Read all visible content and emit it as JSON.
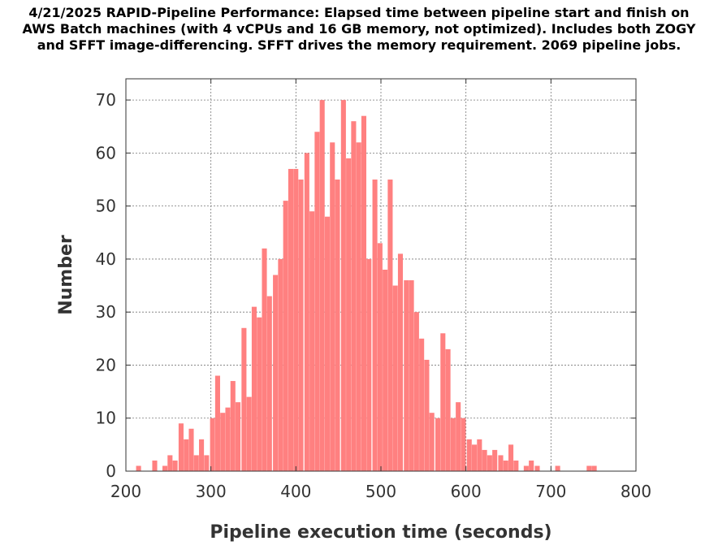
{
  "chart_data": {
    "type": "bar",
    "title_lines": [
      "4/21/2025  RAPID-Pipeline Performance: Elapsed time between pipeline start and finish on",
      "AWS Batch machines (with 4 vCPUs and 16 GB memory, not optimized).  Includes both ZOGY",
      "and SFFT image-differencing.  SFFT drives the memory requirement.  2069 pipeline jobs."
    ],
    "xlabel": "Pipeline execution time (seconds)",
    "ylabel": "Number",
    "xlim": [
      200,
      800
    ],
    "ylim": [
      0,
      74
    ],
    "xticks": [
      200,
      300,
      400,
      500,
      600,
      700,
      800
    ],
    "yticks": [
      0,
      10,
      20,
      30,
      40,
      50,
      60,
      70
    ],
    "grid": true,
    "bar_color": "#ff8080",
    "bin_width": 6.2,
    "bins": [
      {
        "x": 212,
        "y": 1
      },
      {
        "x": 231,
        "y": 2
      },
      {
        "x": 243,
        "y": 1
      },
      {
        "x": 249,
        "y": 3
      },
      {
        "x": 255,
        "y": 2
      },
      {
        "x": 262,
        "y": 9
      },
      {
        "x": 268,
        "y": 6
      },
      {
        "x": 274,
        "y": 8
      },
      {
        "x": 280,
        "y": 3
      },
      {
        "x": 286,
        "y": 6
      },
      {
        "x": 292,
        "y": 3
      },
      {
        "x": 299,
        "y": 10
      },
      {
        "x": 305,
        "y": 18
      },
      {
        "x": 311,
        "y": 11
      },
      {
        "x": 317,
        "y": 12
      },
      {
        "x": 323,
        "y": 17
      },
      {
        "x": 329,
        "y": 13
      },
      {
        "x": 336,
        "y": 27
      },
      {
        "x": 342,
        "y": 14
      },
      {
        "x": 348,
        "y": 31
      },
      {
        "x": 354,
        "y": 29
      },
      {
        "x": 360,
        "y": 42
      },
      {
        "x": 366,
        "y": 33
      },
      {
        "x": 373,
        "y": 37
      },
      {
        "x": 379,
        "y": 40
      },
      {
        "x": 385,
        "y": 51
      },
      {
        "x": 391,
        "y": 57
      },
      {
        "x": 397,
        "y": 57
      },
      {
        "x": 403,
        "y": 55
      },
      {
        "x": 410,
        "y": 60
      },
      {
        "x": 416,
        "y": 49
      },
      {
        "x": 422,
        "y": 64
      },
      {
        "x": 428,
        "y": 70
      },
      {
        "x": 434,
        "y": 48
      },
      {
        "x": 440,
        "y": 62
      },
      {
        "x": 446,
        "y": 55
      },
      {
        "x": 453,
        "y": 70
      },
      {
        "x": 459,
        "y": 59
      },
      {
        "x": 465,
        "y": 66
      },
      {
        "x": 471,
        "y": 62
      },
      {
        "x": 477,
        "y": 67
      },
      {
        "x": 483,
        "y": 40
      },
      {
        "x": 490,
        "y": 55
      },
      {
        "x": 496,
        "y": 43
      },
      {
        "x": 502,
        "y": 38
      },
      {
        "x": 508,
        "y": 55
      },
      {
        "x": 514,
        "y": 35
      },
      {
        "x": 520,
        "y": 41
      },
      {
        "x": 527,
        "y": 36
      },
      {
        "x": 533,
        "y": 36
      },
      {
        "x": 539,
        "y": 30
      },
      {
        "x": 545,
        "y": 25
      },
      {
        "x": 551,
        "y": 21
      },
      {
        "x": 557,
        "y": 11
      },
      {
        "x": 564,
        "y": 10
      },
      {
        "x": 570,
        "y": 26
      },
      {
        "x": 576,
        "y": 23
      },
      {
        "x": 582,
        "y": 10
      },
      {
        "x": 588,
        "y": 13
      },
      {
        "x": 594,
        "y": 10
      },
      {
        "x": 601,
        "y": 6
      },
      {
        "x": 607,
        "y": 5
      },
      {
        "x": 613,
        "y": 6
      },
      {
        "x": 619,
        "y": 4
      },
      {
        "x": 625,
        "y": 3
      },
      {
        "x": 631,
        "y": 4
      },
      {
        "x": 638,
        "y": 3
      },
      {
        "x": 644,
        "y": 2
      },
      {
        "x": 650,
        "y": 5
      },
      {
        "x": 656,
        "y": 2
      },
      {
        "x": 668,
        "y": 1
      },
      {
        "x": 674,
        "y": 2
      },
      {
        "x": 681,
        "y": 1
      },
      {
        "x": 705,
        "y": 1
      },
      {
        "x": 742,
        "y": 1
      },
      {
        "x": 748,
        "y": 1
      }
    ]
  }
}
